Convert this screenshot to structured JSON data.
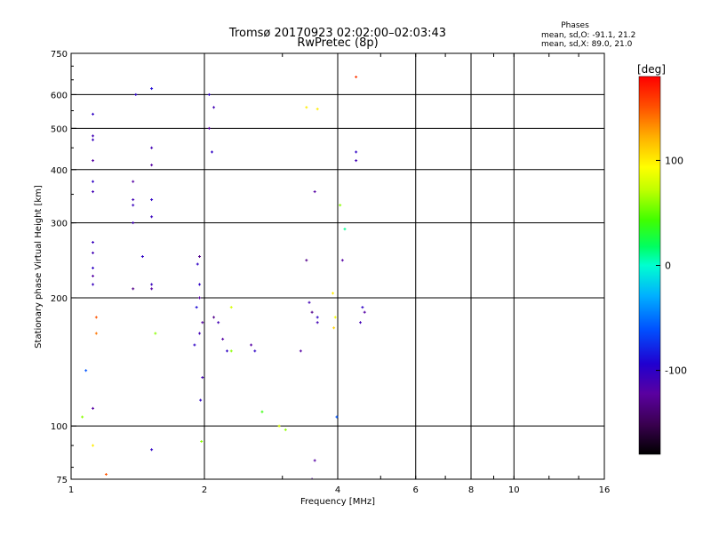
{
  "chart_data": {
    "type": "scatter",
    "title": "Tromsø 20170923 02:02:00–02:03:43",
    "subtitle": "RwPretec (8p)",
    "stats": {
      "header": "Phases",
      "line1": "mean, sd,O: -91.1, 21.2",
      "line2": "mean, sd,X:  89.0, 21.0"
    },
    "xlabel": "Frequency [MHz]",
    "ylabel": "Stationary phase Virtual Height [km]",
    "x_scale": "log",
    "y_scale": "log",
    "xlim": [
      1,
      16
    ],
    "ylim": [
      75,
      750
    ],
    "x_ticks": [
      1,
      2,
      4,
      6,
      8,
      10,
      16
    ],
    "y_ticks": [
      75,
      100,
      200,
      300,
      400,
      500,
      600,
      750
    ],
    "grid": true,
    "colorbar": {
      "label": "[deg]",
      "range": [
        -180,
        180
      ],
      "ticks": [
        100,
        0,
        -100
      ]
    },
    "series": [
      {
        "points": [
          [
            1.12,
            540,
            -100
          ],
          [
            1.12,
            480,
            -110
          ],
          [
            1.12,
            470,
            -105
          ],
          [
            1.12,
            420,
            -120
          ],
          [
            1.12,
            375,
            -100
          ],
          [
            1.12,
            355,
            -110
          ],
          [
            1.12,
            270,
            -105
          ],
          [
            1.12,
            255,
            -110
          ],
          [
            1.12,
            235,
            -100
          ],
          [
            1.12,
            225,
            -120
          ],
          [
            1.12,
            215,
            -105
          ],
          [
            1.12,
            110,
            -120
          ],
          [
            1.08,
            135,
            -60
          ],
          [
            1.06,
            105,
            60
          ],
          [
            1.14,
            180,
            150
          ],
          [
            1.14,
            165,
            140
          ],
          [
            1.2,
            77,
            150
          ],
          [
            1.12,
            90,
            100
          ],
          [
            1.38,
            375,
            -120
          ],
          [
            1.38,
            340,
            -110
          ],
          [
            1.38,
            330,
            -105
          ],
          [
            1.38,
            300,
            -110
          ],
          [
            1.38,
            210,
            -130
          ],
          [
            1.4,
            600,
            -100
          ],
          [
            1.45,
            250,
            -100
          ],
          [
            1.52,
            620,
            -90
          ],
          [
            1.52,
            450,
            -110
          ],
          [
            1.52,
            410,
            -120
          ],
          [
            1.52,
            340,
            -100
          ],
          [
            1.52,
            310,
            -105
          ],
          [
            1.52,
            215,
            -105
          ],
          [
            1.52,
            210,
            -120
          ],
          [
            1.55,
            165,
            60
          ],
          [
            1.52,
            88,
            -100
          ],
          [
            1.95,
            215,
            -100
          ],
          [
            1.95,
            200,
            -120
          ],
          [
            1.92,
            190,
            -90
          ],
          [
            1.95,
            250,
            -130
          ],
          [
            1.93,
            240,
            -100
          ],
          [
            1.98,
            175,
            -120
          ],
          [
            1.95,
            165,
            -110
          ],
          [
            1.9,
            155,
            -100
          ],
          [
            1.98,
            130,
            -110
          ],
          [
            1.96,
            115,
            -100
          ],
          [
            1.97,
            92,
            60
          ],
          [
            2.08,
            440,
            -100
          ],
          [
            2.05,
            500,
            -120
          ],
          [
            2.1,
            560,
            -110
          ],
          [
            2.05,
            600,
            -100
          ],
          [
            2.1,
            180,
            -130
          ],
          [
            2.15,
            175,
            -110
          ],
          [
            2.2,
            160,
            -120
          ],
          [
            2.25,
            150,
            -100
          ],
          [
            2.3,
            190,
            80
          ],
          [
            2.3,
            150,
            60
          ],
          [
            2.55,
            155,
            -120
          ],
          [
            2.6,
            150,
            -100
          ],
          [
            2.7,
            108,
            40
          ],
          [
            2.95,
            100,
            80
          ],
          [
            3.05,
            98,
            60
          ],
          [
            3.3,
            150,
            -120
          ],
          [
            3.45,
            195,
            -110
          ],
          [
            3.5,
            185,
            -130
          ],
          [
            3.6,
            180,
            -100
          ],
          [
            3.6,
            175,
            -110
          ],
          [
            3.4,
            560,
            100
          ],
          [
            3.6,
            555,
            100
          ],
          [
            3.55,
            355,
            -120
          ],
          [
            3.4,
            245,
            -130
          ],
          [
            3.9,
            205,
            100
          ],
          [
            3.95,
            180,
            90
          ],
          [
            3.92,
            170,
            110
          ],
          [
            4.05,
            330,
            60
          ],
          [
            4.15,
            290,
            10
          ],
          [
            4.1,
            245,
            -120
          ],
          [
            3.98,
            105,
            -60
          ],
          [
            3.55,
            83,
            -120
          ],
          [
            3.5,
            75,
            -120
          ],
          [
            4.4,
            440,
            -100
          ],
          [
            4.4,
            420,
            -110
          ],
          [
            4.4,
            660,
            160
          ],
          [
            4.6,
            185,
            -120
          ],
          [
            4.5,
            175,
            -110
          ],
          [
            4.55,
            190,
            -100
          ]
        ]
      }
    ]
  }
}
